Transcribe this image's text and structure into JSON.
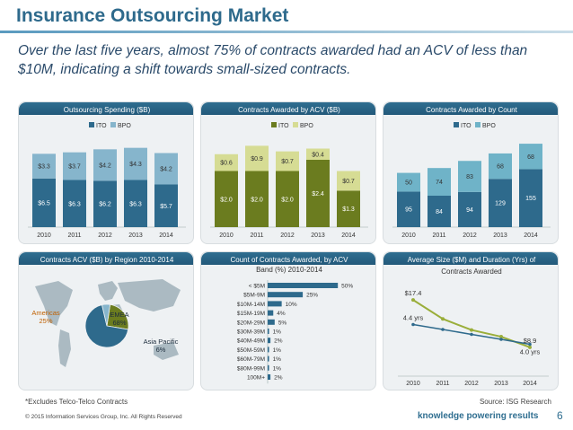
{
  "header": {
    "title": "Insurance Outsourcing Market",
    "subtitle": "Over the last five years, almost 75% of contracts awarded had an ACV of less than $10M, indicating a shift towards small-sized contracts."
  },
  "colors": {
    "ito_blue": "#2e6a8c",
    "bpo_blue": "#86b5cc",
    "ito_green": "#6b7c1f",
    "bpo_green": "#d6dc94",
    "ito_teal": "#2e6a8c",
    "bpo_teal": "#6fb3c8",
    "line_green": "#9aae3a"
  },
  "chart_data": [
    {
      "type": "bar",
      "stacked": true,
      "title": "Outsourcing Spending ($B)",
      "categories": [
        "2010",
        "2011",
        "2012",
        "2013",
        "2014"
      ],
      "series": [
        {
          "name": "ITO",
          "values": [
            6.5,
            6.3,
            6.2,
            6.3,
            5.7
          ],
          "labels": [
            "$6.5",
            "$6.3",
            "$6.2",
            "$6.3",
            "$5.7"
          ]
        },
        {
          "name": "BPO",
          "values": [
            3.3,
            3.7,
            4.2,
            4.3,
            4.2
          ],
          "labels": [
            "$3.3",
            "$3.7",
            "$4.2",
            "$4.3",
            "$4.2"
          ]
        }
      ],
      "legend": [
        "ITO",
        "BPO"
      ],
      "ylim": [
        0,
        12
      ]
    },
    {
      "type": "bar",
      "stacked": true,
      "title": "Contracts  Awarded by ACV ($B)",
      "categories": [
        "2010",
        "2011",
        "2012",
        "2013",
        "2014"
      ],
      "series": [
        {
          "name": "ITO",
          "values": [
            2.0,
            2.0,
            2.0,
            2.4,
            1.3
          ],
          "labels": [
            "$2.0",
            "$2.0",
            "$2.0",
            "$2.4",
            "$1.3"
          ]
        },
        {
          "name": "BPO",
          "values": [
            0.6,
            0.9,
            0.7,
            0.4,
            0.7
          ],
          "labels": [
            "$0.6",
            "$0.9",
            "$0.7",
            "$0.4",
            "$0.7"
          ]
        }
      ],
      "legend": [
        "ITO",
        "BPO"
      ],
      "ylim": [
        0,
        3.2
      ]
    },
    {
      "type": "bar",
      "stacked": true,
      "title": "Contracts Awarded by Count",
      "categories": [
        "2010",
        "2011",
        "2012",
        "2013",
        "2014"
      ],
      "series": [
        {
          "name": "ITO",
          "values": [
            95,
            84,
            94,
            129,
            155
          ],
          "labels": [
            "95",
            "84",
            "94",
            "129",
            "155"
          ]
        },
        {
          "name": "BPO",
          "values": [
            50,
            74,
            83,
            68,
            68
          ],
          "labels": [
            "50",
            "74",
            "83",
            "68",
            "68"
          ]
        }
      ],
      "legend": [
        "ITO",
        "BPO"
      ],
      "ylim": [
        0,
        240
      ]
    },
    {
      "type": "pie",
      "title": "Contracts ACV ($B) by Region 2010-2014",
      "slices": [
        {
          "name": "Americas",
          "value": 25,
          "label": "25%"
        },
        {
          "name": "EMEA",
          "value": 68,
          "label": "68%"
        },
        {
          "name": "Asia Pacific",
          "value": 6,
          "label": "6%"
        }
      ]
    },
    {
      "type": "bar",
      "orientation": "horizontal",
      "title": "Count of Contracts Awarded, by ACV Band (%) 2010-2014",
      "title_lines": [
        "Count of Contracts Awarded, by ACV",
        "Band (%) 2010-2014"
      ],
      "categories": [
        "< $5M",
        "$5M-9M",
        "$10M-14M",
        "$15M-19M",
        "$20M-29M",
        "$30M-39M",
        "$40M-49M",
        "$50M-59M",
        "$60M-79M",
        "$80M-99M",
        "100M+"
      ],
      "values": [
        50,
        25,
        10,
        4,
        5,
        1,
        2,
        1,
        1,
        1,
        2
      ],
      "labels": [
        "50%",
        "25%",
        "10%",
        "4%",
        "5%",
        "1%",
        "2%",
        "1%",
        "1%",
        "1%",
        "2%"
      ],
      "xlim": [
        0,
        55
      ]
    },
    {
      "type": "line",
      "title": "Average Size ($M) and Duration (Yrs) of Contracts Awarded",
      "title_lines": [
        "Average Size ($M) and Duration (Yrs) of",
        "Contracts Awarded"
      ],
      "categories": [
        "2010",
        "2011",
        "2012",
        "2013",
        "2014"
      ],
      "series": [
        {
          "name": "Average Size ($M)",
          "values": [
            17.4,
            14.0,
            12.0,
            10.8,
            8.9
          ]
        },
        {
          "name": "Duration (Yrs)",
          "values": [
            4.4,
            4.3,
            4.2,
            4.1,
            4.0
          ]
        }
      ],
      "point_labels": {
        "size_first": "$17.4",
        "size_last": "$8.9",
        "duration_first": "4.4 yrs",
        "duration_last": "4.0 yrs"
      }
    }
  ],
  "footer": {
    "footnote": "*Excludes Telco-Telco Contracts",
    "source": "Source: ISG Research",
    "copyright": "© 2015 Information Services Group, Inc. All Rights Reserved",
    "tagline": "knowledge powering results",
    "page": "6"
  }
}
